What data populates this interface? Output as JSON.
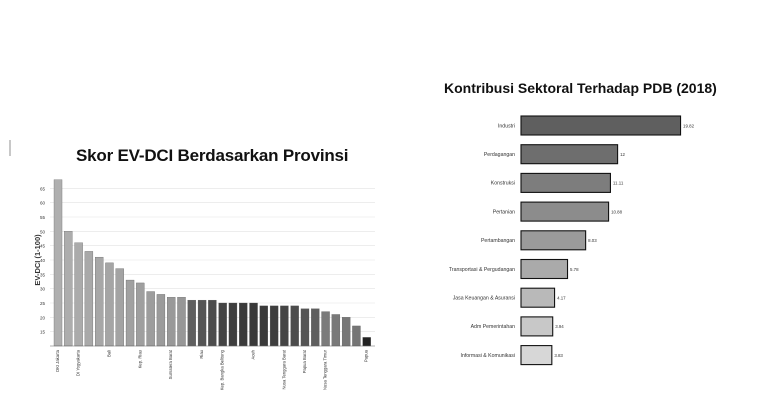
{
  "chart_data": [
    {
      "type": "bar",
      "title": "Skor EV-DCI Berdasarkan Provinsi",
      "ylabel": "EV-DCI (1-100)",
      "ylim": [
        10,
        70
      ],
      "yticks": [
        15,
        20,
        25,
        30,
        35,
        40,
        45,
        50,
        55,
        60,
        65
      ],
      "x_labels": [
        "DKI Jakarta",
        "DI Yogyakarta",
        "Bali",
        "Kep. Riau",
        "Sumatera Barat",
        "Riau",
        "Kep. Bangka Belitung",
        "Aceh",
        "Nusa Tenggara Barat",
        "Papua Barat",
        "Nusa Tenggara Timur",
        "Papua"
      ],
      "values": [
        68,
        50,
        46,
        43,
        41,
        39,
        37,
        33,
        32,
        29,
        28,
        27,
        27,
        26,
        26,
        26,
        25,
        25,
        25,
        25,
        24,
        24,
        24,
        24,
        23,
        23,
        22,
        21,
        20,
        17,
        13
      ],
      "grid": true
    },
    {
      "type": "bar",
      "orientation": "horizontal",
      "title": "Kontribusi Sektoral Terhadap PDB (2018)",
      "categories": [
        "Industri",
        "Perdagangan",
        "Konstruksi",
        "Pertanian",
        "Pertambangan",
        "Transportasi & Pergudangan",
        "Jasa Keuangan & Asuransi",
        "Adm Pemerintahan",
        "Informasi & Komunikasi"
      ],
      "values": [
        19.82,
        12,
        11.11,
        10.88,
        8.03,
        5.78,
        4.17,
        3.94,
        3.83
      ],
      "value_labels": [
        "19.82",
        "12",
        "11.11",
        "10.88",
        "8.03",
        "5.78",
        "4.17",
        "3.94",
        "3.83"
      ],
      "xlim": [
        0,
        20
      ]
    }
  ]
}
